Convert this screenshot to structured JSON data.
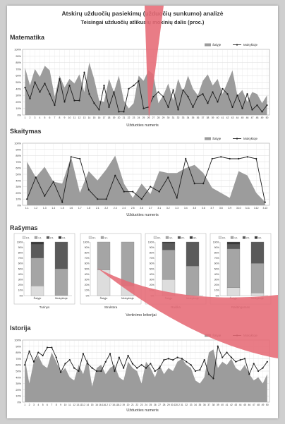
{
  "document": {
    "title": "Atskirų užduočių pasiekimų (užduočių sunkumo) analizė",
    "subtitle": "Teisingai užduočių atlikusių mokinių dalis (proc.)"
  },
  "colors": {
    "area": "#9c9c9c",
    "line": "#1c1c1c",
    "bar_dark": "#5a5a5a",
    "bar_mid": "#a5a5a5",
    "bar_light": "#dddddd",
    "page_curl": "#e66a75"
  },
  "legend": {
    "area_label": "Šalyje",
    "line_label": "Mokykloje"
  },
  "sections": [
    {
      "heading": "Matematika",
      "xlabel": "Užduoties numeris",
      "y_ticks": [
        "100%",
        "90%",
        "80%",
        "70%",
        "60%",
        "50%",
        "40%",
        "30%",
        "20%",
        "10%",
        "0%"
      ],
      "chart_data": {
        "type": "area",
        "x": [
          "1",
          "2",
          "3",
          "4",
          "5",
          "6",
          "7",
          "8",
          "9",
          "10",
          "11",
          "12",
          "13",
          "14",
          "15",
          "16",
          "17",
          "18",
          "19",
          "20",
          "21",
          "22",
          "23",
          "24",
          "25",
          "26",
          "27",
          "28",
          "29",
          "30",
          "31",
          "32",
          "33",
          "34",
          "35",
          "36",
          "37",
          "38",
          "39",
          "40",
          "41",
          "42",
          "43",
          "44",
          "45",
          "46",
          "47",
          "48",
          "49",
          "50"
        ],
        "series": [
          {
            "name": "Šalyje",
            "values": [
              72,
              45,
              70,
              58,
              75,
              68,
              28,
              60,
              42,
              55,
              48,
              62,
              35,
              80,
              55,
              22,
              20,
              55,
              35,
              60,
              22,
              10,
              18,
              60,
              52,
              68,
              62,
              18,
              30,
              48,
              22,
              55,
              35,
              60,
              40,
              30,
              52,
              62,
              45,
              55,
              32,
              50,
              68,
              30,
              38,
              20,
              35,
              32,
              18,
              30
            ]
          },
          {
            "name": "Mokykloje",
            "values": [
              42,
              25,
              50,
              35,
              48,
              32,
              15,
              55,
              20,
              45,
              22,
              22,
              65,
              32,
              18,
              8,
              45,
              12,
              35,
              5,
              5,
              40,
              45,
              52,
              10,
              12,
              28,
              35,
              28,
              12,
              38,
              8,
              38,
              28,
              12,
              28,
              32,
              18,
              35,
              20,
              40,
              32,
              12,
              30,
              10,
              32,
              8,
              15,
              5,
              15
            ]
          }
        ],
        "ylim": [
          0,
          100
        ]
      }
    },
    {
      "heading": "Skaitymas",
      "xlabel": "Užduoties numeris",
      "y_ticks": [
        "100%",
        "90%",
        "80%",
        "70%",
        "60%",
        "50%",
        "40%",
        "30%",
        "20%",
        "10%",
        "0%"
      ],
      "chart_data": {
        "type": "area",
        "x": [
          "1.1",
          "1.2",
          "1.3",
          "1.4",
          "1.5",
          "1.6",
          "1.7",
          "1.8",
          "2.1",
          "2.2",
          "2.3",
          "2.4",
          "2.5",
          "2.6",
          "2.7",
          "3.1",
          "3.2",
          "3.3",
          "3.4",
          "3.5",
          "3.6",
          "3.7",
          "3.8",
          "3.9",
          "3.10",
          "3.11",
          "3.12",
          "3.13"
        ],
        "series": [
          {
            "name": "Šalyje",
            "values": [
              70,
              45,
              62,
              38,
              35,
              78,
              20,
              55,
              40,
              58,
              80,
              35,
              12,
              35,
              18,
              55,
              52,
              52,
              60,
              65,
              52,
              28,
              20,
              12,
              55,
              48,
              20,
              5
            ]
          },
          {
            "name": "Mokykloje",
            "values": [
              10,
              45,
              15,
              38,
              5,
              78,
              75,
              25,
              10,
              10,
              48,
              22,
              22,
              10,
              30,
              22,
              45,
              12,
              75,
              35,
              35,
              75,
              78,
              75,
              75,
              78,
              75,
              5
            ]
          }
        ],
        "ylim": [
          0,
          100
        ]
      }
    },
    {
      "heading": "Rašymas",
      "xlabel": "Vertinimo kriterijai",
      "chart_data": {
        "type": "bar",
        "stacked": true,
        "percent": true,
        "panels": [
          {
            "label": "Turinys",
            "legend": [
              "0 t.",
              "1 t.",
              "2 t.",
              "3 t."
            ],
            "categories": [
              "Šalyje",
              "Mokykloje"
            ],
            "series": [
              {
                "name": "0 t.",
                "values": [
                  18,
                  0
                ]
              },
              {
                "name": "1 t.",
                "values": [
                  52,
                  50
                ]
              },
              {
                "name": "2 t.",
                "values": [
                  25,
                  50
                ]
              },
              {
                "name": "3 t.",
                "values": [
                  5,
                  0
                ]
              }
            ]
          },
          {
            "label": "Struktūra",
            "legend": [
              "0 t.",
              "1 t."
            ],
            "categories": [
              "Šalyje",
              "Mokykloje"
            ],
            "series": [
              {
                "name": "0 t.",
                "values": [
                  48,
                  18
                ]
              },
              {
                "name": "1 t.",
                "values": [
                  52,
                  82
                ]
              }
            ]
          },
          {
            "label": "Raiška",
            "legend": [
              "0 t.",
              "1 t.",
              "2 t.",
              "3 t."
            ],
            "categories": [
              "Šalyje",
              "Mokykloje"
            ],
            "series": [
              {
                "name": "0 t.",
                "values": [
                  30,
                  0
                ]
              },
              {
                "name": "1 t.",
                "values": [
                  55,
                  55
                ]
              },
              {
                "name": "2 t.",
                "values": [
                  12,
                  45
                ]
              },
              {
                "name": "3 t.",
                "values": [
                  3,
                  0
                ]
              }
            ]
          },
          {
            "label": "Raštingumas",
            "legend": [
              "0 t.",
              "1 t.",
              "2 t.",
              "3 t."
            ],
            "categories": [
              "Šalyje",
              "Mokykloje"
            ],
            "series": [
              {
                "name": "0 t.",
                "values": [
                  15,
                  5
                ]
              },
              {
                "name": "1 t.",
                "values": [
                  72,
                  55
                ]
              },
              {
                "name": "2 t.",
                "values": [
                  8,
                  40
                ]
              },
              {
                "name": "3 t.",
                "values": [
                  5,
                  0
                ]
              }
            ]
          }
        ],
        "y_ticks": [
          "100%",
          "90%",
          "80%",
          "70%",
          "60%",
          "50%",
          "40%",
          "30%",
          "20%",
          "10%",
          "0%"
        ]
      }
    },
    {
      "heading": "Istorija",
      "xlabel": "Užduoties numeris",
      "y_ticks": [
        "100%",
        "90%",
        "80%",
        "70%",
        "60%",
        "50%",
        "40%",
        "30%",
        "20%",
        "10%",
        "0%"
      ],
      "chart_data": {
        "type": "area",
        "x": [
          "1",
          "2",
          "3",
          "4",
          "5",
          "6",
          "7",
          "8",
          "9",
          "10",
          "11",
          "12",
          "13.1",
          "13.2",
          "14",
          "15",
          "16",
          "16.1",
          "16.2",
          "17",
          "18.1",
          "18.2",
          "19",
          "20",
          "21",
          "22",
          "23",
          "24",
          "25",
          "26",
          "27",
          "28",
          "29",
          "30.1",
          "30.2",
          "31",
          "32",
          "33",
          "34",
          "35",
          "36",
          "37",
          "38",
          "39",
          "40",
          "41",
          "42",
          "43",
          "44",
          "45",
          "46",
          "47",
          "48",
          "49",
          "50"
        ],
        "series": [
          {
            "name": "Šalyje",
            "values": [
              70,
              30,
              65,
              75,
              60,
              55,
              80,
              65,
              48,
              55,
              40,
              35,
              60,
              45,
              70,
              25,
              55,
              60,
              45,
              55,
              60,
              40,
              35,
              65,
              55,
              50,
              30,
              65,
              55,
              40,
              60,
              45,
              55,
              50,
              65,
              70,
              60,
              55,
              35,
              30,
              40,
              80,
              85,
              55,
              65,
              60,
              70,
              55,
              50,
              60,
              45,
              35,
              40,
              30,
              45
            ]
          },
          {
            "name": "Mokykloje",
            "values": [
              60,
              82,
              65,
              80,
              75,
              88,
              88,
              72,
              48,
              62,
              68,
              55,
              50,
              78,
              62,
              55,
              50,
              50,
              65,
              78,
              50,
              72,
              55,
              75,
              62,
              55,
              60,
              55,
              62,
              50,
              55,
              68,
              70,
              68,
              72,
              70,
              65,
              60,
              50,
              52,
              68,
              45,
              38,
              90,
              72,
              80,
              72,
              65,
              68,
              70,
              45,
              62,
              50,
              55,
              65
            ]
          }
        ],
        "ylim": [
          0,
          100
        ]
      }
    }
  ]
}
